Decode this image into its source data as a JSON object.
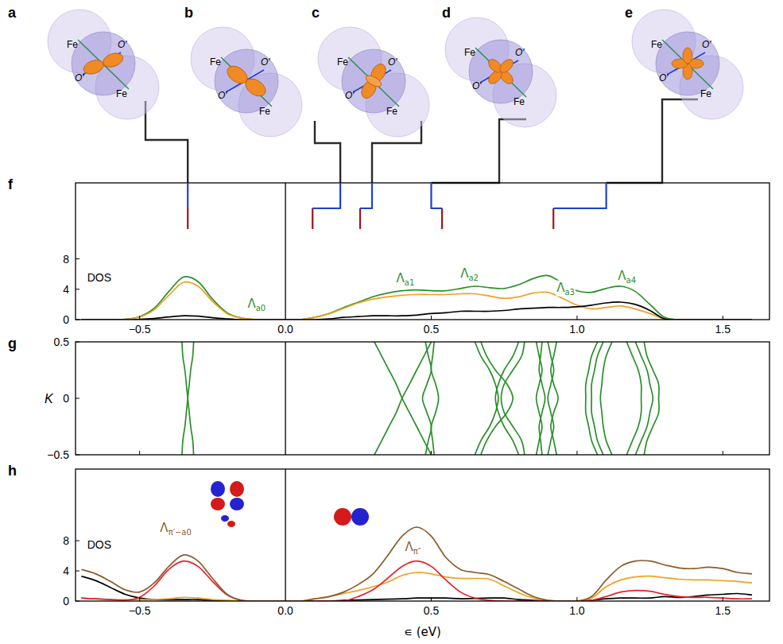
{
  "chart_data": [
    {
      "type": "line",
      "panel": "f",
      "y_label": "DOS",
      "x": [
        -0.7,
        -0.65,
        -0.6,
        -0.55,
        -0.5,
        -0.45,
        -0.4,
        -0.35,
        -0.3,
        -0.25,
        -0.2,
        -0.15,
        -0.1,
        -0.05,
        0,
        0.05,
        0.1,
        0.15,
        0.2,
        0.25,
        0.3,
        0.35,
        0.4,
        0.45,
        0.5,
        0.55,
        0.6,
        0.65,
        0.7,
        0.75,
        0.8,
        0.85,
        0.9,
        0.95,
        1,
        1.05,
        1.1,
        1.15,
        1.2,
        1.25,
        1.3,
        1.35,
        1.4,
        1.45,
        1.5,
        1.55,
        1.6
      ],
      "series": [
        {
          "color": "#2a8f2a",
          "values": [
            0,
            0,
            0,
            0.05,
            0.4,
            1.5,
            3.7,
            5.6,
            5.0,
            2.7,
            0.9,
            0.2,
            0,
            0,
            0,
            0,
            0.3,
            0.8,
            1.6,
            2.3,
            3.0,
            3.5,
            3.8,
            3.9,
            3.8,
            3.8,
            4.1,
            4.4,
            4.2,
            4.1,
            4.6,
            5.4,
            5.8,
            4.8,
            3.8,
            3.6,
            4.1,
            4.4,
            3.7,
            2.0,
            0.3,
            0,
            0,
            0,
            0,
            0,
            0
          ]
        },
        {
          "color": "#f0a020",
          "values": [
            0,
            0,
            0,
            0.05,
            0.35,
            1.3,
            3.2,
            4.9,
            4.4,
            2.4,
            0.8,
            0.2,
            0,
            0,
            0,
            0,
            0.3,
            0.8,
            1.5,
            2.2,
            2.7,
            3.0,
            3.2,
            3.3,
            3.3,
            3.3,
            3.4,
            3.4,
            3.1,
            2.8,
            3.0,
            3.5,
            3.6,
            2.8,
            1.9,
            1.4,
            1.6,
            1.8,
            1.4,
            0.8,
            0.1,
            0,
            0,
            0,
            0,
            0,
            0
          ]
        },
        {
          "color": "#000000",
          "values": [
            0,
            0,
            0,
            0,
            0.05,
            0.15,
            0.35,
            0.5,
            0.45,
            0.25,
            0.1,
            0,
            0,
            0,
            0,
            0,
            0,
            0.1,
            0.3,
            0.4,
            0.5,
            0.5,
            0.5,
            0.6,
            0.8,
            0.9,
            1.1,
            1.1,
            1.1,
            1.2,
            1.4,
            1.5,
            1.6,
            1.6,
            1.7,
            1.9,
            2.2,
            2.3,
            2.0,
            1.2,
            0.1,
            0,
            0,
            0,
            0,
            0,
            0
          ]
        }
      ],
      "levels": {
        "series": [
          {
            "color": "#a0141e",
            "values": [
              -0.335,
              0.093,
              0.256,
              0.537,
              0.919
            ]
          },
          {
            "color": "#2040d0",
            "values": [
              -0.335,
              0.188,
              0.297,
              0.5,
              1.1
            ]
          }
        ]
      },
      "annotations": [
        {
          "text": "Λ",
          "sub": "a0",
          "color": "#2a8f2a"
        },
        {
          "text": "Λ",
          "sub": "a1",
          "color": "#2a8f2a"
        },
        {
          "text": "Λ",
          "sub": "a2",
          "color": "#2a8f2a"
        },
        {
          "text": "Λ",
          "sub": "a3",
          "color": "#2a8f2a"
        },
        {
          "text": "Λ",
          "sub": "a4",
          "color": "#2a8f2a"
        }
      ],
      "xlim": [
        -0.72,
        1.66
      ],
      "ylim": [
        0,
        18
      ],
      "xticks": [
        {
          "value": -0.5,
          "label": "−0.5"
        },
        {
          "value": 0,
          "label": "0.0"
        },
        0.5,
        {
          "value": 1,
          "label": "1.0"
        },
        1.5
      ],
      "yticks": [
        0,
        4,
        8
      ]
    },
    {
      "type": "line",
      "panel": "g",
      "orientation": "horizontal",
      "y_label": "K",
      "color": "#2a8f2a",
      "tick_labels": "y",
      "y": [
        -0.5,
        -0.375,
        -0.25,
        -0.125,
        0,
        0.125,
        0.25,
        0.375,
        0.5
      ],
      "series": [
        {
          "values": [
            -0.315,
            -0.318,
            -0.325,
            -0.33,
            -0.335,
            -0.34,
            -0.345,
            -0.352,
            -0.355
          ]
        },
        {
          "values": [
            -0.355,
            -0.352,
            -0.345,
            -0.34,
            -0.335,
            -0.33,
            -0.325,
            -0.318,
            -0.315
          ]
        },
        {
          "values": [
            0.305,
            0.33,
            0.355,
            0.38,
            0.4,
            0.425,
            0.45,
            0.475,
            0.5
          ]
        },
        {
          "values": [
            0.5,
            0.475,
            0.45,
            0.425,
            0.4,
            0.38,
            0.355,
            0.33,
            0.305
          ]
        },
        {
          "values": [
            0.48,
            0.49,
            0.5,
            0.485,
            0.47,
            0.485,
            0.5,
            0.49,
            0.48
          ]
        },
        {
          "values": [
            0.51,
            0.505,
            0.5,
            0.515,
            0.525,
            0.515,
            0.5,
            0.505,
            0.51
          ]
        },
        {
          "values": [
            0.65,
            0.67,
            0.7,
            0.72,
            0.73,
            0.72,
            0.7,
            0.67,
            0.65
          ]
        },
        {
          "values": [
            0.67,
            0.69,
            0.72,
            0.76,
            0.78,
            0.76,
            0.72,
            0.69,
            0.67
          ]
        },
        {
          "values": [
            0.8,
            0.78,
            0.75,
            0.73,
            0.72,
            0.73,
            0.75,
            0.78,
            0.8
          ]
        },
        {
          "values": [
            0.82,
            0.81,
            0.78,
            0.75,
            0.74,
            0.75,
            0.78,
            0.81,
            0.82
          ]
        },
        {
          "values": [
            0.86,
            0.87,
            0.88,
            0.87,
            0.86,
            0.87,
            0.88,
            0.87,
            0.86
          ]
        },
        {
          "values": [
            0.88,
            0.875,
            0.87,
            0.88,
            0.89,
            0.88,
            0.87,
            0.875,
            0.88
          ]
        },
        {
          "values": [
            0.9,
            0.91,
            0.92,
            0.91,
            0.9,
            0.91,
            0.92,
            0.91,
            0.9
          ]
        },
        {
          "values": [
            0.93,
            0.92,
            0.91,
            0.92,
            0.935,
            0.92,
            0.91,
            0.92,
            0.93
          ]
        },
        {
          "values": [
            1.07,
            1.05,
            1.04,
            1.03,
            1.03,
            1.03,
            1.04,
            1.05,
            1.07
          ]
        },
        {
          "values": [
            1.09,
            1.07,
            1.06,
            1.05,
            1.05,
            1.05,
            1.06,
            1.07,
            1.09
          ]
        },
        {
          "values": [
            1.12,
            1.1,
            1.09,
            1.085,
            1.08,
            1.085,
            1.09,
            1.1,
            1.12
          ]
        },
        {
          "values": [
            1.17,
            1.19,
            1.21,
            1.22,
            1.22,
            1.22,
            1.21,
            1.19,
            1.17
          ]
        },
        {
          "values": [
            1.2,
            1.22,
            1.24,
            1.25,
            1.26,
            1.25,
            1.24,
            1.22,
            1.2
          ]
        },
        {
          "values": [
            1.23,
            1.24,
            1.26,
            1.28,
            1.28,
            1.28,
            1.26,
            1.24,
            1.23
          ]
        }
      ],
      "xlim": [
        -0.72,
        1.66
      ],
      "ylim": [
        -0.5,
        0.5
      ],
      "xticks": [
        -0.5,
        0,
        0.5,
        1,
        1.5
      ],
      "yticks": [
        {
          "value": -0.5,
          "label": "−0.5"
        },
        0,
        0.5
      ]
    },
    {
      "type": "line",
      "panel": "h",
      "y_label": "DOS",
      "x_label": "∊ (eV)",
      "x": [
        -0.7,
        -0.65,
        -0.6,
        -0.55,
        -0.5,
        -0.45,
        -0.4,
        -0.35,
        -0.3,
        -0.25,
        -0.2,
        -0.15,
        -0.1,
        -0.05,
        0,
        0.05,
        0.1,
        0.15,
        0.2,
        0.25,
        0.3,
        0.35,
        0.4,
        0.45,
        0.5,
        0.55,
        0.6,
        0.65,
        0.7,
        0.75,
        0.8,
        0.85,
        0.9,
        0.95,
        1,
        1.05,
        1.1,
        1.15,
        1.2,
        1.25,
        1.3,
        1.35,
        1.4,
        1.45,
        1.5,
        1.55,
        1.6
      ],
      "series": [
        {
          "color": "#000000",
          "values": [
            3.3,
            2.7,
            1.8,
            0.9,
            0.4,
            0.2,
            0.2,
            0.2,
            0.2,
            0.1,
            0.05,
            0,
            0,
            0,
            0,
            0,
            0,
            0,
            0.1,
            0.15,
            0.2,
            0.25,
            0.3,
            0.4,
            0.4,
            0.4,
            0.3,
            0.35,
            0.4,
            0.4,
            0.2,
            0.1,
            0,
            0,
            0,
            0.1,
            0.3,
            0.4,
            0.4,
            0.4,
            0.6,
            0.5,
            0.6,
            0.8,
            0.9,
            1.0,
            0.8
          ]
        },
        {
          "color": "#f0a020",
          "values": [
            0.4,
            0.3,
            0.2,
            0.2,
            0.2,
            0.2,
            0.3,
            0.5,
            0.4,
            0.2,
            0.1,
            0,
            0,
            0,
            0,
            0,
            0.3,
            0.6,
            1.0,
            1.4,
            1.9,
            2.5,
            3.4,
            3.8,
            3.6,
            3.2,
            3.0,
            3.0,
            2.9,
            2.0,
            1.1,
            0.4,
            0.1,
            0,
            0,
            0.4,
            1.9,
            2.8,
            3.2,
            3.3,
            3.1,
            2.9,
            2.8,
            2.8,
            2.7,
            2.6,
            2.4
          ]
        },
        {
          "color": "#e8202a",
          "values": [
            0.4,
            0.3,
            0.2,
            0.1,
            0.5,
            2.0,
            4.2,
            5.3,
            4.6,
            2.6,
            0.8,
            0.1,
            0,
            0,
            0,
            0,
            0,
            0,
            0,
            0.6,
            1.5,
            3.0,
            4.6,
            5.3,
            4.6,
            2.8,
            1.2,
            0.4,
            0.1,
            0,
            0,
            0,
            0,
            0,
            0,
            0.1,
            0.6,
            1.2,
            1.4,
            1.3,
            0.9,
            0.6,
            0.5,
            0.5,
            0.4,
            0.3,
            0.3
          ]
        },
        {
          "color": "#8b5a2b",
          "values": [
            4.2,
            3.6,
            2.6,
            1.5,
            1.2,
            2.4,
            4.6,
            6.1,
            5.3,
            3.0,
            0.9,
            0.1,
            0,
            0,
            0,
            0,
            0.3,
            0.6,
            1.2,
            2.2,
            3.6,
            6.0,
            8.6,
            9.8,
            8.6,
            5.8,
            4.2,
            3.8,
            3.5,
            2.6,
            1.6,
            0.6,
            0.1,
            0,
            0,
            0.6,
            2.8,
            4.6,
            5.3,
            5.3,
            4.8,
            4.4,
            4.3,
            4.5,
            4.3,
            3.8,
            3.6
          ]
        }
      ],
      "annotations": [
        {
          "text": "Λ",
          "sub": "π′−a0",
          "color": "#8b5a2b"
        },
        {
          "text": "Λ",
          "sub": "π″",
          "color": "#8b5a2b"
        }
      ],
      "xlim": [
        -0.72,
        1.66
      ],
      "ylim": [
        0,
        17.5
      ],
      "xticks": [
        {
          "value": -0.5,
          "label": "−0.5"
        },
        {
          "value": 0,
          "label": "0.0"
        },
        0.5,
        {
          "value": 1,
          "label": "1.0"
        },
        1.5
      ],
      "yticks": [
        0,
        4,
        8
      ]
    }
  ],
  "illustrations": [
    {
      "letter": "a",
      "atoms": [
        "Fe",
        "O′",
        "O′",
        "Fe"
      ]
    },
    {
      "letter": "b",
      "atoms": [
        "Fe",
        "O′",
        "O′",
        "Fe"
      ]
    },
    {
      "letter": "c",
      "atoms": [
        "Fe",
        "O′",
        "O′",
        "Fe"
      ]
    },
    {
      "letter": "d",
      "atoms": [
        "Fe",
        "O′",
        "O′",
        "Fe"
      ]
    },
    {
      "letter": "e",
      "atoms": [
        "Fe",
        "O′",
        "O′",
        "Fe"
      ]
    }
  ]
}
